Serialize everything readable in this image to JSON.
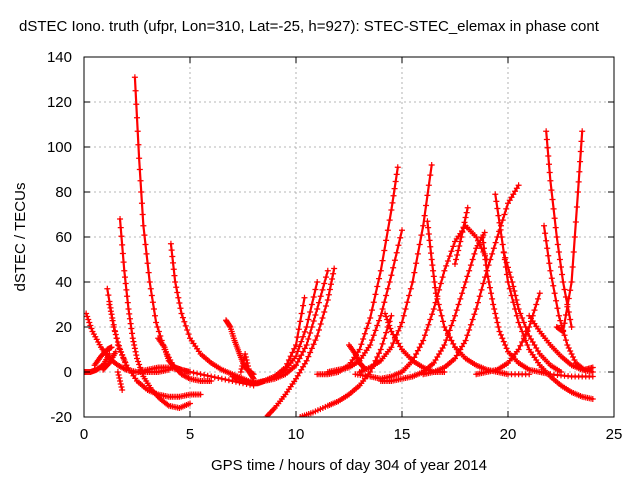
{
  "chart_data": {
    "type": "scatter",
    "title": "dSTEC Iono. truth (ufpr, Lon=310, Lat=-25, h=927): STEC-STEC_elemax in phase cont",
    "xlabel": "GPS time / hours of day 304 of year 2014",
    "ylabel": "dSTEC  / TECUs",
    "xlim": [
      0,
      25
    ],
    "ylim": [
      -20,
      140
    ],
    "xticks": [
      0,
      5,
      10,
      15,
      20,
      25
    ],
    "yticks": [
      -20,
      0,
      20,
      40,
      60,
      80,
      100,
      120,
      140
    ],
    "grid": true,
    "marker": "plus",
    "color": "#ff0000",
    "series": [
      {
        "x": [
          0.0,
          0.3,
          0.6,
          0.9,
          1.2
        ],
        "y": [
          0,
          0,
          1,
          3,
          8
        ]
      },
      {
        "x": [
          0.1,
          0.4,
          0.8,
          1.2,
          1.6,
          2.0,
          2.5,
          3.0,
          3.5,
          4.0
        ],
        "y": [
          26,
          18,
          11,
          6,
          3,
          1,
          0,
          0,
          0,
          1
        ]
      },
      {
        "x": [
          0.5,
          0.8,
          1.1,
          1.3
        ],
        "y": [
          3,
          7,
          10,
          11
        ]
      },
      {
        "x": [
          0.9,
          1.2,
          1.5
        ],
        "y": [
          1,
          4,
          9
        ]
      },
      {
        "x": [
          1.1,
          1.4,
          1.7,
          2.0
        ],
        "y": [
          37,
          20,
          10,
          3
        ]
      },
      {
        "x": [
          1.2,
          1.6,
          2.0,
          2.5,
          3.0,
          3.5,
          4.0,
          4.5,
          5.0,
          5.5
        ],
        "y": [
          30,
          12,
          3,
          -4,
          -8,
          -10,
          -11,
          -11,
          -10,
          -10
        ]
      },
      {
        "x": [
          1.7,
          1.9,
          2.1,
          2.3,
          2.5,
          2.8,
          3.2,
          3.6,
          4.0,
          4.5,
          5.0
        ],
        "y": [
          68,
          45,
          28,
          15,
          6,
          -2,
          -8,
          -12,
          -15,
          -16,
          -14
        ]
      },
      {
        "x": [
          1.6,
          1.8
        ],
        "y": [
          0,
          -8
        ]
      },
      {
        "x": [
          2.4,
          2.6,
          2.8,
          3.1,
          3.4,
          3.8,
          4.2,
          4.6,
          5.0,
          5.5,
          6.0
        ],
        "y": [
          131,
          95,
          65,
          40,
          22,
          10,
          3,
          -1,
          -3,
          -4,
          -4
        ]
      },
      {
        "x": [
          2.5,
          3.0,
          3.5,
          4.0,
          4.5,
          5.0,
          6.0,
          7.0,
          8.0
        ],
        "y": [
          0,
          1,
          2,
          2,
          1,
          0,
          -2,
          -4,
          -6
        ]
      },
      {
        "x": [
          3.5,
          3.8,
          4.0,
          4.3,
          4.6,
          5.0
        ],
        "y": [
          15,
          11,
          5,
          2,
          1,
          0
        ]
      },
      {
        "x": [
          4.1,
          4.3,
          4.6,
          5.0,
          5.5,
          6.0,
          6.5,
          7.0,
          7.5,
          8.0
        ],
        "y": [
          57,
          40,
          26,
          15,
          8,
          4,
          1,
          -1,
          -3,
          -5
        ]
      },
      {
        "x": [
          6.7,
          6.9,
          7.1,
          7.3,
          7.5,
          7.7,
          8.0
        ],
        "y": [
          23,
          20,
          14,
          9,
          4,
          1,
          -1
        ]
      },
      {
        "x": [
          7.0,
          7.3,
          7.6,
          7.9,
          8.2,
          8.5,
          9.0,
          9.5,
          10.0,
          10.4
        ],
        "y": [
          -2,
          -3,
          -4,
          -5,
          -5,
          -4,
          -2,
          2,
          12,
          33
        ]
      },
      {
        "x": [
          7.4,
          7.6,
          7.8,
          8.0
        ],
        "y": [
          0,
          8,
          0,
          -3
        ]
      },
      {
        "x": [
          8.0,
          8.5,
          9.0,
          9.5,
          10.0,
          10.5,
          11.0
        ],
        "y": [
          -5,
          -4,
          -2,
          1,
          7,
          20,
          40
        ]
      },
      {
        "x": [
          8.5,
          9.0,
          9.5,
          10.0,
          10.5,
          11.0,
          11.5
        ],
        "y": [
          -4,
          -3,
          -1,
          3,
          12,
          28,
          45
        ]
      },
      {
        "x": [
          8.6,
          9.0,
          9.5,
          10.0,
          10.5,
          11.0,
          11.5,
          11.8
        ],
        "y": [
          -20,
          -16,
          -10,
          -3,
          5,
          16,
          32,
          46
        ]
      },
      {
        "x": [
          10.2,
          10.8,
          11.5,
          12.0,
          12.5,
          13.0,
          13.5,
          14.0,
          14.5
        ],
        "y": [
          -20,
          -18,
          -15,
          -13,
          -10,
          -6,
          0,
          10,
          25
        ]
      },
      {
        "x": [
          11.0,
          11.5,
          12.0,
          12.5,
          13.0,
          13.5,
          14.0,
          14.5,
          14.8
        ],
        "y": [
          -1,
          -1,
          0,
          3,
          10,
          24,
          45,
          72,
          91
        ]
      },
      {
        "x": [
          11.5,
          12.0,
          12.5,
          13.0,
          13.5,
          14.0,
          14.5,
          15.0
        ],
        "y": [
          0,
          1,
          2,
          5,
          12,
          25,
          43,
          63
        ]
      },
      {
        "x": [
          12.5,
          12.8,
          13.0,
          13.2
        ],
        "y": [
          12,
          8,
          4,
          2
        ]
      },
      {
        "x": [
          12.8,
          13.5,
          14.0,
          14.5,
          15.0,
          15.5,
          16.0,
          16.5,
          17.0,
          17.5,
          18.0,
          18.5,
          19.0
        ],
        "y": [
          -1,
          -2,
          -3,
          -2,
          0,
          5,
          14,
          28,
          45,
          58,
          65,
          60,
          50
        ]
      },
      {
        "x": [
          13.0,
          13.5,
          14.0,
          14.5,
          15.0,
          15.5,
          16.0,
          16.4
        ],
        "y": [
          0,
          2,
          5,
          11,
          22,
          40,
          65,
          92
        ]
      },
      {
        "x": [
          14.2,
          14.5,
          15.0,
          15.5,
          16.0,
          16.5,
          17.0
        ],
        "y": [
          26,
          18,
          10,
          5,
          2,
          0,
          0
        ]
      },
      {
        "x": [
          14.0,
          14.5,
          15.0,
          15.5,
          16.0,
          16.5,
          17.0,
          17.5,
          18.0,
          18.5,
          18.9
        ],
        "y": [
          -4,
          -4,
          -3,
          -2,
          0,
          4,
          12,
          25,
          40,
          55,
          62
        ]
      },
      {
        "x": [
          16.2,
          16.4,
          16.6,
          17.0,
          17.5,
          18.0,
          18.5,
          19.0,
          19.5,
          20.0,
          21.0
        ],
        "y": [
          67,
          50,
          35,
          20,
          11,
          6,
          3,
          1,
          0,
          -1,
          -1
        ]
      },
      {
        "x": [
          16.0,
          16.5,
          17.0,
          17.5,
          18.0,
          18.5,
          19.0,
          19.5,
          20.0,
          20.5
        ],
        "y": [
          -1,
          0,
          2,
          6,
          14,
          28,
          45,
          60,
          75,
          83
        ]
      },
      {
        "x": [
          17.5,
          17.8,
          18.1
        ],
        "y": [
          48,
          60,
          73
        ]
      },
      {
        "x": [
          18.8,
          19.0,
          19.3,
          19.6,
          20.0,
          20.5,
          21.0,
          21.5,
          22.0,
          23.0,
          24.0
        ],
        "y": [
          60,
          45,
          30,
          18,
          9,
          4,
          1,
          0,
          -1,
          -2,
          -2
        ]
      },
      {
        "x": [
          19.4,
          19.7,
          20.0,
          20.5,
          21.0,
          21.5,
          22.0,
          22.5,
          23.0,
          23.5,
          24.0
        ],
        "y": [
          79,
          60,
          40,
          22,
          10,
          3,
          -2,
          -6,
          -9,
          -11,
          -12
        ]
      },
      {
        "x": [
          18.5,
          19.0,
          19.5,
          20.0,
          20.5,
          21.0,
          21.5
        ],
        "y": [
          -1,
          0,
          1,
          4,
          10,
          20,
          35
        ]
      },
      {
        "x": [
          19.8,
          20.2,
          20.5,
          21.0,
          21.5,
          22.0,
          22.5
        ],
        "y": [
          53,
          40,
          28,
          16,
          8,
          3,
          0
        ]
      },
      {
        "x": [
          21.0,
          21.5,
          22.0,
          22.5,
          23.0,
          23.5,
          24.0
        ],
        "y": [
          25,
          18,
          12,
          7,
          3,
          1,
          0
        ]
      },
      {
        "x": [
          21.7,
          22.0,
          22.4,
          22.8,
          23.2,
          23.6,
          24.0
        ],
        "y": [
          65,
          45,
          25,
          12,
          4,
          1,
          2
        ]
      },
      {
        "x": [
          21.8,
          22.0,
          22.3,
          22.6,
          23.0
        ],
        "y": [
          107,
          85,
          60,
          40,
          20
        ]
      },
      {
        "x": [
          22.3,
          22.6,
          23.0,
          23.3,
          23.5
        ],
        "y": [
          20,
          18,
          40,
          80,
          107
        ]
      }
    ]
  }
}
